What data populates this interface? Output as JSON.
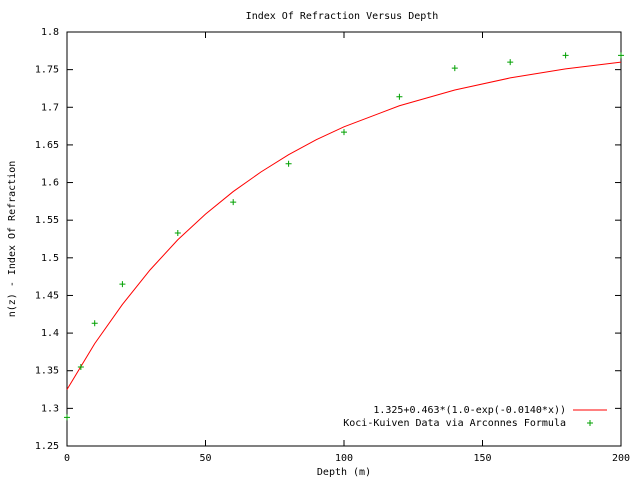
{
  "chart_data": {
    "type": "line",
    "title": "Index Of Refraction Versus Depth",
    "x_label": "Depth (m)",
    "y_label": "n(z) - Index Of Refraction",
    "xlim": [
      0,
      200
    ],
    "ylim": [
      1.25,
      1.8
    ],
    "xticks": [
      0,
      50,
      100,
      150,
      200
    ],
    "yticks": [
      1.25,
      1.3,
      1.35,
      1.4,
      1.45,
      1.5,
      1.55,
      1.6,
      1.65,
      1.7,
      1.75,
      1.8
    ],
    "grid": false,
    "legend_position": "bottom-right",
    "series": [
      {
        "name": "1.325+0.463*(1.0-exp(-0.0140*x))",
        "color": "#ff0000",
        "style": "line",
        "x": [
          0,
          10,
          20,
          30,
          40,
          50,
          60,
          70,
          80,
          90,
          100,
          120,
          140,
          160,
          180,
          200
        ],
        "values": [
          1.325,
          1.386,
          1.438,
          1.484,
          1.524,
          1.558,
          1.588,
          1.614,
          1.637,
          1.657,
          1.674,
          1.702,
          1.723,
          1.739,
          1.751,
          1.76
        ]
      },
      {
        "name": "Koci-Kuiven Data via Arconnes Formula",
        "color": "#00a000",
        "style": "points",
        "x": [
          0,
          5,
          10,
          20,
          40,
          60,
          80,
          100,
          120,
          140,
          160,
          180,
          200
        ],
        "values": [
          1.288,
          1.355,
          1.413,
          1.465,
          1.533,
          1.574,
          1.625,
          1.667,
          1.714,
          1.752,
          1.76,
          1.769,
          1.769
        ]
      }
    ]
  }
}
